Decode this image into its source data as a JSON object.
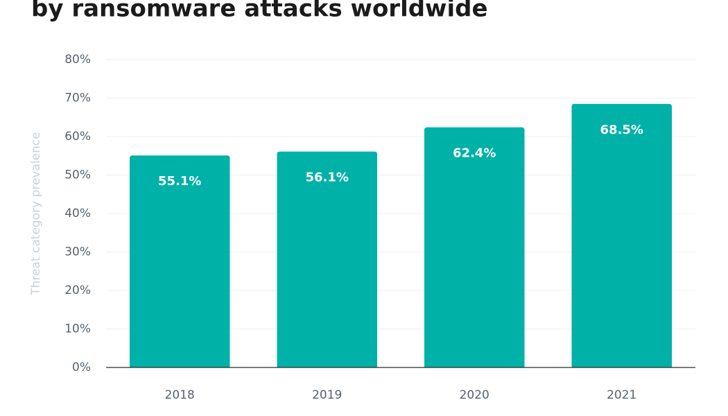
{
  "chart_data": {
    "type": "bar",
    "title": "by ransomware attacks worldwide",
    "y_label": "Threat category prevalence",
    "categories": [
      "2018",
      "2019",
      "2020",
      "2021"
    ],
    "values": [
      55.1,
      56.1,
      62.4,
      68.5
    ],
    "value_labels": [
      "55.1%",
      "56.1%",
      "62.4%",
      "68.5%"
    ],
    "color": "#00b1a7",
    "ylim": [
      0,
      80
    ],
    "yticks": [
      {
        "value": 0,
        "label": "0%"
      },
      {
        "value": 10,
        "label": "10%"
      },
      {
        "value": 20,
        "label": "20%"
      },
      {
        "value": 30,
        "label": "30%"
      },
      {
        "value": 40,
        "label": "40%"
      },
      {
        "value": 50,
        "label": "50%"
      },
      {
        "value": 60,
        "label": "60%"
      },
      {
        "value": 70,
        "label": "70%"
      },
      {
        "value": 80,
        "label": "80%"
      }
    ],
    "grid": true
  }
}
